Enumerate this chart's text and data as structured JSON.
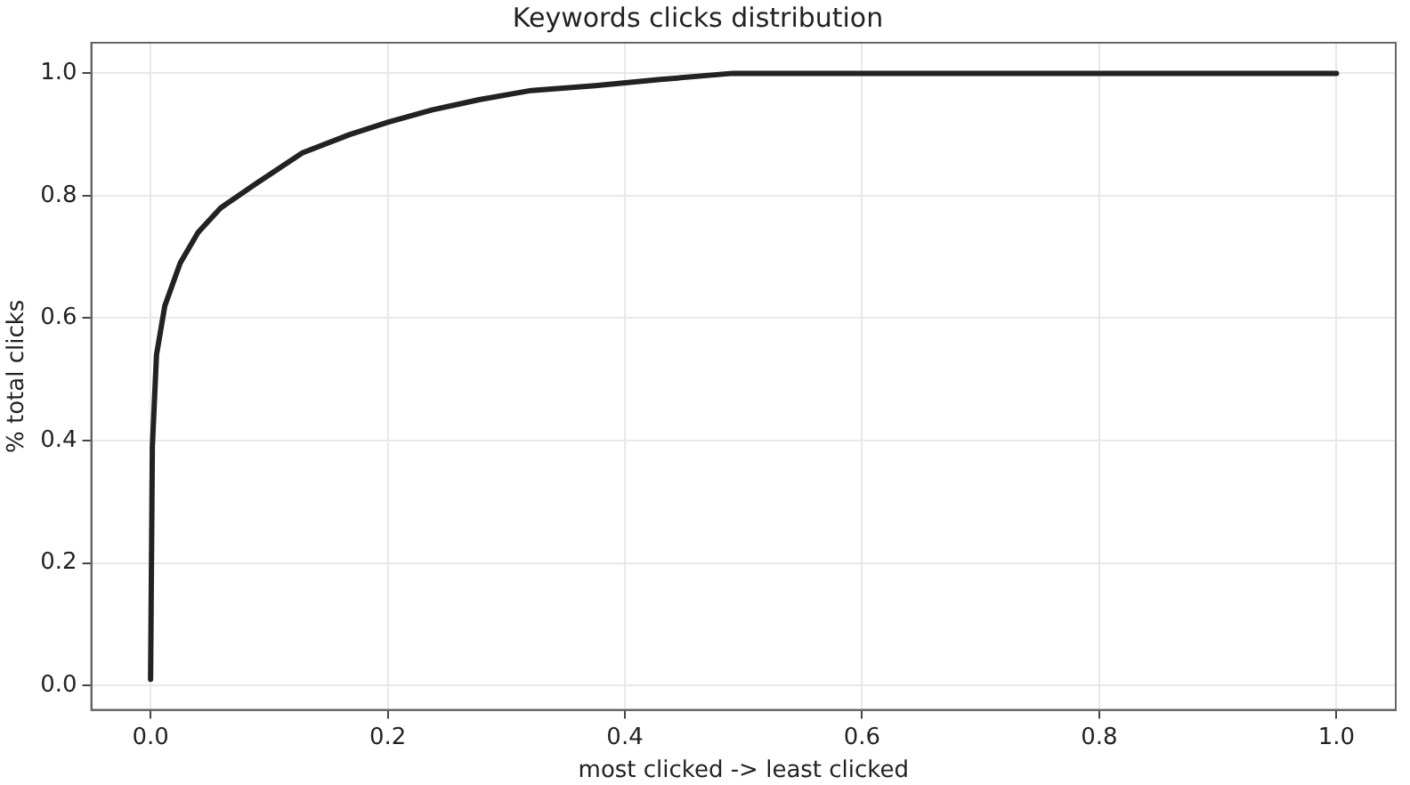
{
  "chart_data": {
    "type": "line",
    "title": "Keywords clicks distribution",
    "xlabel": "most clicked -> least clicked",
    "ylabel": "% total clicks",
    "series": [
      {
        "color": "#222222",
        "x": [
          0,
          0.0015,
          0.005,
          0.012,
          0.025,
          0.04,
          0.059,
          0.089,
          0.128,
          0.168,
          0.2,
          0.237,
          0.277,
          0.321,
          0.375,
          0.43,
          0.491,
          0.6,
          0.8,
          1.0
        ],
        "values": [
          0.01,
          0.39,
          0.54,
          0.62,
          0.69,
          0.74,
          0.78,
          0.82,
          0.87,
          0.9,
          0.92,
          0.94,
          0.957,
          0.972,
          0.98,
          0.99,
          1.0,
          1.0,
          1.0,
          1.0
        ]
      }
    ],
    "xlim": [
      -0.05,
      1.05
    ],
    "xticks": [
      {
        "value": 0,
        "label": "0.0"
      },
      {
        "value": 0.2,
        "label": "0.2"
      },
      {
        "value": 0.4,
        "label": "0.4"
      },
      {
        "value": 0.6,
        "label": "0.6"
      },
      {
        "value": 0.8,
        "label": "0.8"
      },
      {
        "value": 1,
        "label": "1.0"
      }
    ],
    "ylim": [
      -0.04,
      1.05
    ],
    "yticks": [
      {
        "value": 0,
        "label": "0.0"
      },
      {
        "value": 0.2,
        "label": "0.2"
      },
      {
        "value": 0.4,
        "label": "0.4"
      },
      {
        "value": 0.6,
        "label": "0.6"
      },
      {
        "value": 0.8,
        "label": "0.8"
      },
      {
        "value": 1,
        "label": "1.0"
      }
    ],
    "grid": true,
    "legend": false,
    "marker": "none",
    "line_style": "solid"
  }
}
